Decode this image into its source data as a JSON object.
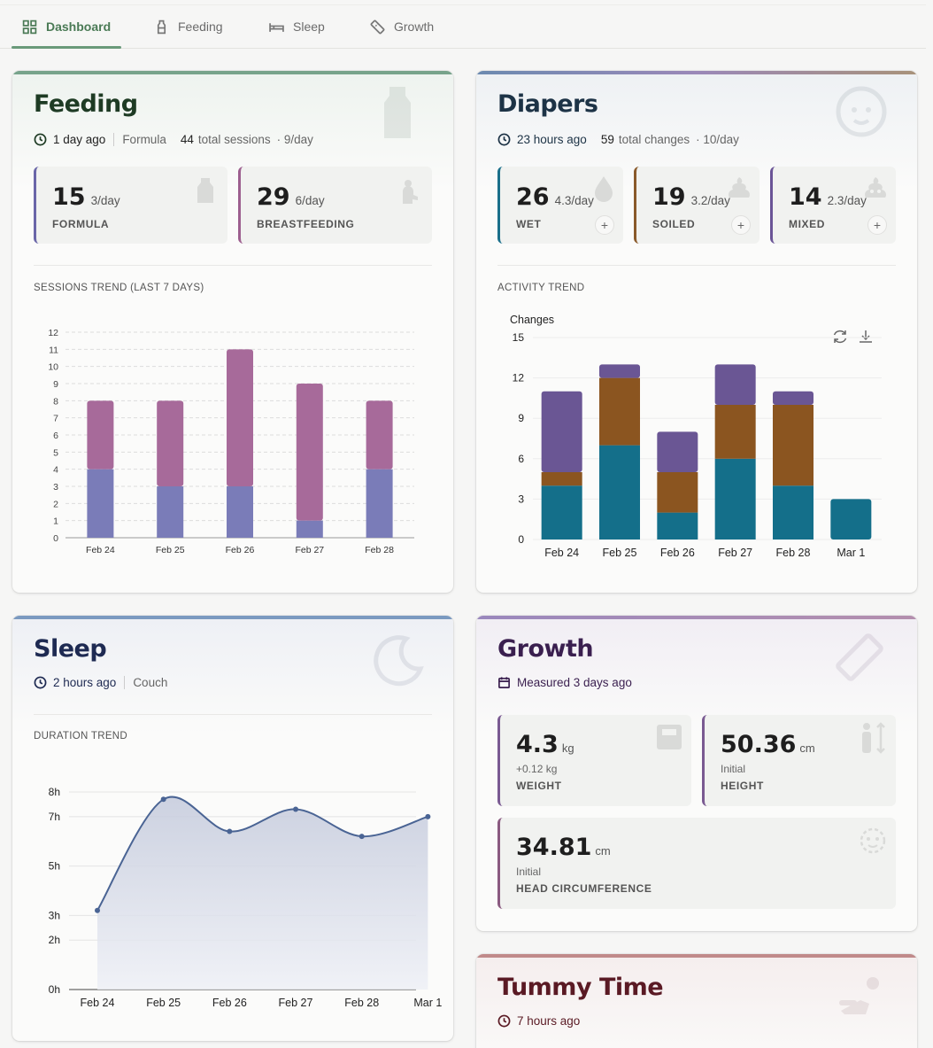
{
  "tabs": [
    {
      "label": "Dashboard",
      "icon": "dashboard-icon",
      "active": true
    },
    {
      "label": "Feeding",
      "icon": "bottle-icon"
    },
    {
      "label": "Sleep",
      "icon": "bed-icon"
    },
    {
      "label": "Growth",
      "icon": "ruler-icon"
    }
  ],
  "feeding": {
    "title": "Feeding",
    "last": "1 day ago",
    "type": "Formula",
    "total_count": "44",
    "total_label": "total sessions",
    "per_day": "· 9/day",
    "stats": [
      {
        "value": "15",
        "per": "3/day",
        "label": "FORMULA",
        "color": "#6a66a8"
      },
      {
        "value": "29",
        "per": "6/day",
        "label": "BREASTFEEDING",
        "color": "#9d5f8f"
      }
    ],
    "trend_label": "SESSIONS TREND (LAST 7 DAYS)",
    "accent": "#6f9d84"
  },
  "diapers": {
    "title": "Diapers",
    "last": "23 hours ago",
    "total_count": "59",
    "total_label": "total changes",
    "per_day": "· 10/day",
    "stats": [
      {
        "value": "26",
        "per": "4.3/day",
        "label": "WET",
        "color": "#1a6f8a"
      },
      {
        "value": "19",
        "per": "3.2/day",
        "label": "SOILED",
        "color": "#8a5a2b"
      },
      {
        "value": "14",
        "per": "2.3/day",
        "label": "MIXED",
        "color": "#6a5496"
      }
    ],
    "trend_label": "ACTIVITY TREND",
    "add_label": "+"
  },
  "sleep": {
    "title": "Sleep",
    "last": "2 hours ago",
    "location": "Couch",
    "trend_label": "DURATION TREND"
  },
  "growth": {
    "title": "Growth",
    "measured": "Measured 3 days ago",
    "stats": [
      {
        "value": "4.3",
        "unit": "kg",
        "sub": "+0.12 kg",
        "label": "WEIGHT"
      },
      {
        "value": "50.36",
        "unit": "cm",
        "sub": "Initial",
        "label": "HEIGHT"
      },
      {
        "value": "34.81",
        "unit": "cm",
        "sub": "Initial",
        "label": "HEAD CIRCUMFERENCE"
      }
    ]
  },
  "tummy": {
    "title": "Tummy Time",
    "last": "7 hours ago"
  },
  "chart_data": [
    {
      "type": "bar",
      "stacked": true,
      "categories": [
        "Feb 24",
        "Feb 25",
        "Feb 26",
        "Feb 27",
        "Feb 28"
      ],
      "series": [
        {
          "values": [
            4,
            3,
            3,
            1,
            4
          ],
          "color": "#7a7cb8"
        },
        {
          "values": [
            4,
            5,
            8,
            8,
            4
          ],
          "color": "#a76a9a"
        }
      ],
      "ylim": [
        0,
        12
      ],
      "yticks": [
        0,
        1,
        2,
        3,
        4,
        5,
        6,
        7,
        8,
        9,
        10,
        11,
        12
      ],
      "grid": true
    },
    {
      "type": "bar",
      "stacked": true,
      "categories": [
        "Feb 24",
        "Feb 25",
        "Feb 26",
        "Feb 27",
        "Feb 28",
        "Mar 1"
      ],
      "series": [
        {
          "name": "Wet",
          "values": [
            4,
            7,
            2,
            6,
            4,
            3
          ],
          "color": "#146f8a"
        },
        {
          "name": "Soiled",
          "values": [
            1,
            5,
            3,
            4,
            6,
            0
          ],
          "color": "#8b5520"
        },
        {
          "name": "Mixed",
          "values": [
            6,
            1,
            3,
            3,
            1,
            0
          ],
          "color": "#6a5694"
        }
      ],
      "ylabel": "Changes",
      "ylim": [
        0,
        15
      ],
      "yticks": [
        0,
        3,
        6,
        9,
        12,
        15
      ],
      "grid": true
    },
    {
      "type": "area",
      "categories": [
        "Feb 24",
        "Feb 25",
        "Feb 26",
        "Feb 27",
        "Feb 28",
        "Mar 1"
      ],
      "values": [
        3.2,
        7.7,
        6.4,
        7.3,
        6.2,
        7.0
      ],
      "ylim": [
        0,
        8.5
      ],
      "yticks": [
        {
          "v": 0,
          "t": "0h"
        },
        {
          "v": 2,
          "t": "2h"
        },
        {
          "v": 3,
          "t": "3h"
        },
        {
          "v": 5,
          "t": "5h"
        },
        {
          "v": 7,
          "t": "7h"
        },
        {
          "v": 8,
          "t": "8h"
        }
      ],
      "color": "#4a6494",
      "grid": true
    }
  ]
}
